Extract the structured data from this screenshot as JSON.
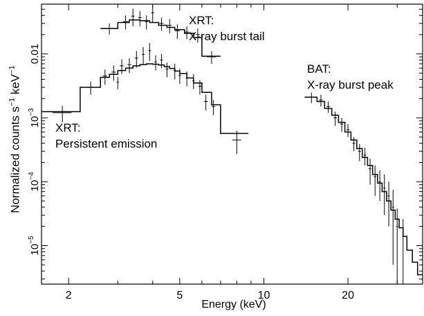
{
  "chart_data": {
    "type": "step",
    "xlabel": "Energy (keV)",
    "ylabel": "Normalized counts s⁻¹ keV⁻¹",
    "xscale": "log",
    "yscale": "log",
    "xlim": [
      1.6,
      37
    ],
    "ylim": [
      2.5e-06,
      0.06
    ],
    "xticks": [
      {
        "value": 2,
        "label": "2"
      },
      {
        "value": 5,
        "label": "5"
      },
      {
        "value": 10,
        "label": "10"
      },
      {
        "value": 20,
        "label": "20"
      }
    ],
    "yticks": [
      {
        "value": 0.01,
        "base": "0.01",
        "exp": ""
      },
      {
        "value": 0.001,
        "base": "10",
        "exp": "−3"
      },
      {
        "value": 0.0001,
        "base": "10",
        "exp": "−4"
      },
      {
        "value": 1e-05,
        "base": "10",
        "exp": "−5"
      }
    ],
    "annotations": [
      {
        "id": "tail",
        "lines": [
          "XRT:",
          "X-ray burst tail"
        ]
      },
      {
        "id": "persistent",
        "lines": [
          "XRT:",
          "Persistent emission"
        ]
      },
      {
        "id": "peak",
        "lines": [
          "BAT:",
          "X-ray burst peak"
        ]
      }
    ],
    "series": [
      {
        "id": "xrt-persistent",
        "model_steps": [
          [
            1.6,
            2.2,
            0.00125
          ],
          [
            2.2,
            2.6,
            0.003
          ],
          [
            2.6,
            2.8,
            0.0043
          ],
          [
            2.8,
            3.0,
            0.0048
          ],
          [
            3.0,
            3.2,
            0.0055
          ],
          [
            3.2,
            3.4,
            0.006
          ],
          [
            3.4,
            3.6,
            0.0065
          ],
          [
            3.6,
            3.8,
            0.0068
          ],
          [
            3.8,
            4.0,
            0.007
          ],
          [
            4.0,
            4.2,
            0.0069
          ],
          [
            4.2,
            4.4,
            0.0067
          ],
          [
            4.4,
            4.6,
            0.0063
          ],
          [
            4.6,
            4.8,
            0.0059
          ],
          [
            4.8,
            5.0,
            0.0054
          ],
          [
            5.0,
            5.3,
            0.0049
          ],
          [
            5.3,
            5.6,
            0.0042
          ],
          [
            5.6,
            6.0,
            0.0035
          ],
          [
            6.0,
            6.5,
            0.0025
          ],
          [
            6.5,
            7.0,
            0.0016
          ],
          [
            7.0,
            8.8,
            0.00057
          ]
        ],
        "points": [
          [
            1.9,
            0.0012,
            0.3,
            0.00035
          ],
          [
            2.4,
            0.003,
            0.2,
            0.0007
          ],
          [
            2.7,
            0.0045,
            0.1,
            0.0012
          ],
          [
            2.9,
            0.0052,
            0.1,
            0.0014
          ],
          [
            3.0,
            0.0036,
            0.05,
            0.0008
          ],
          [
            3.1,
            0.0065,
            0.1,
            0.0017
          ],
          [
            3.3,
            0.0068,
            0.1,
            0.0018
          ],
          [
            3.5,
            0.0086,
            0.1,
            0.0025
          ],
          [
            3.7,
            0.0098,
            0.08,
            0.003
          ],
          [
            3.9,
            0.0113,
            0.08,
            0.0035
          ],
          [
            4.1,
            0.0075,
            0.08,
            0.002
          ],
          [
            4.3,
            0.008,
            0.1,
            0.002
          ],
          [
            4.5,
            0.0058,
            0.1,
            0.0015
          ],
          [
            4.8,
            0.0055,
            0.1,
            0.0015
          ],
          [
            5.0,
            0.0046,
            0.1,
            0.0012
          ],
          [
            5.3,
            0.0042,
            0.1,
            0.0011
          ],
          [
            5.6,
            0.0038,
            0.1,
            0.001
          ],
          [
            5.9,
            0.0031,
            0.15,
            0.0008
          ],
          [
            6.2,
            0.0018,
            0.2,
            0.0005
          ],
          [
            6.6,
            0.0015,
            0.2,
            0.0004
          ],
          [
            8.0,
            0.00045,
            0.6,
            0.00018
          ]
        ]
      },
      {
        "id": "xrt-tail",
        "model_steps": [
          [
            2.6,
            3.0,
            0.025
          ],
          [
            3.0,
            3.3,
            0.031
          ],
          [
            3.3,
            3.6,
            0.034
          ],
          [
            3.6,
            3.9,
            0.033
          ],
          [
            3.9,
            4.2,
            0.031
          ],
          [
            4.2,
            4.5,
            0.028
          ],
          [
            4.5,
            4.8,
            0.026
          ],
          [
            4.8,
            5.2,
            0.024
          ],
          [
            5.2,
            5.6,
            0.021
          ],
          [
            5.6,
            6.0,
            0.018
          ],
          [
            6.0,
            7.0,
            0.0092
          ]
        ],
        "points": [
          [
            2.8,
            0.025,
            0.2,
            0.005
          ],
          [
            3.2,
            0.032,
            0.15,
            0.008
          ],
          [
            3.4,
            0.039,
            0.1,
            0.012
          ],
          [
            3.6,
            0.037,
            0.1,
            0.01
          ],
          [
            3.8,
            0.032,
            0.1,
            0.008
          ],
          [
            4.0,
            0.044,
            0.1,
            0.013
          ],
          [
            4.3,
            0.03,
            0.15,
            0.007
          ],
          [
            4.6,
            0.028,
            0.15,
            0.007
          ],
          [
            4.9,
            0.023,
            0.2,
            0.006
          ],
          [
            5.3,
            0.022,
            0.2,
            0.005
          ],
          [
            5.8,
            0.02,
            0.2,
            0.005
          ],
          [
            6.5,
            0.009,
            0.5,
            0.002
          ]
        ]
      },
      {
        "id": "bat-peak",
        "model_steps": [
          [
            14.0,
            15.5,
            0.0021
          ],
          [
            15.5,
            16.5,
            0.0018
          ],
          [
            16.5,
            17.5,
            0.0014
          ],
          [
            17.5,
            18.5,
            0.0011
          ],
          [
            18.5,
            19.5,
            0.00085
          ],
          [
            19.5,
            20.5,
            0.0006
          ],
          [
            20.5,
            21.5,
            0.00045
          ],
          [
            21.5,
            22.5,
            0.00033
          ],
          [
            22.5,
            23.5,
            0.00024
          ],
          [
            23.5,
            24.5,
            0.00018
          ],
          [
            24.5,
            25.5,
            0.00013
          ],
          [
            25.5,
            26.5,
            9.5e-05
          ],
          [
            26.5,
            27.5,
            7e-05
          ],
          [
            27.5,
            28.5,
            5e-05
          ],
          [
            28.5,
            29.5,
            3.6e-05
          ],
          [
            29.5,
            30.5,
            2.6e-05
          ],
          [
            30.5,
            31.5,
            1.9e-05
          ],
          [
            31.5,
            32.5,
            1.4e-05
          ],
          [
            32.5,
            34.0,
            8.5e-06
          ],
          [
            34.0,
            35.5,
            5.5e-06
          ],
          [
            35.5,
            37.0,
            3.5e-06
          ]
        ],
        "points": [
          [
            14.8,
            0.0021,
            0.8,
            0.0004
          ],
          [
            16.0,
            0.0019,
            0.5,
            0.0004
          ],
          [
            17.0,
            0.0015,
            0.5,
            0.0003
          ],
          [
            18.0,
            0.001,
            0.5,
            0.00025
          ],
          [
            19.0,
            0.0008,
            0.5,
            0.0002
          ],
          [
            20.0,
            0.00065,
            0.5,
            0.00015
          ],
          [
            21.0,
            0.0004,
            0.5,
            0.0001
          ],
          [
            22.0,
            0.0003,
            0.5,
            9e-05
          ],
          [
            23.0,
            0.00026,
            0.5,
            8e-05
          ],
          [
            24.0,
            0.00016,
            0.5,
            7e-05
          ],
          [
            25.0,
            0.00012,
            0.5,
            6e-05
          ],
          [
            26.0,
            0.0001,
            0.5,
            5e-05
          ],
          [
            27.0,
            8e-05,
            0.5,
            5e-05
          ],
          [
            28.0,
            6e-05,
            0.5,
            4e-05
          ],
          [
            29.0,
            4e-05,
            0.5,
            3.5e-05
          ],
          [
            30.0,
            2e-05,
            0.5,
            1.8e-05
          ],
          [
            31.5,
            1.4e-05,
            0.5,
            1.2e-05
          ]
        ]
      }
    ]
  }
}
